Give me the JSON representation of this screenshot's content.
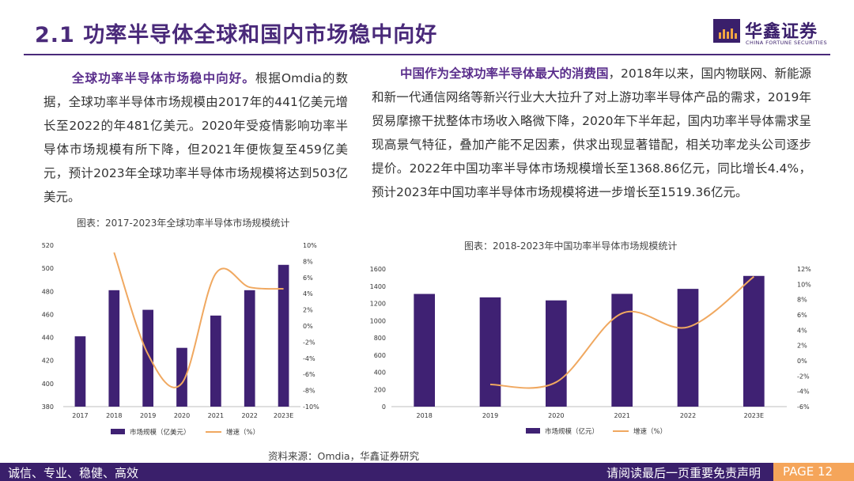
{
  "header": {
    "title": "2.1 功率半导体全球和国内市场稳中向好",
    "logo_cn": "华鑫证券",
    "logo_en": "CHINA FORTUNE SECURITIES"
  },
  "left_text": {
    "highlight": "全球功率半导体市场稳中向好。",
    "body": "根据Omdia的数据，全球功率半导体市场规模由2017年的441亿美元增长至2022的年481亿美元。2020年受疫情影响功率半导体市场规模有所下降，但2021年便恢复至459亿美元，预计2023年全球功率半导体市场规模将达到503亿美元。"
  },
  "right_text": {
    "highlight": "中国作为全球功率半导体最大的消费国",
    "body": "，2018年以来，国内物联网、新能源和新一代通信网络等新兴行业大大拉升了对上游功率半导体产品的需求，2019年贸易摩擦干扰整体市场收入略微下降，2020年下半年起，国内功率半导体需求呈现高景气特征，叠加产能不足因素，供求出现显著错配，相关功率龙头公司逐步提价。2022年中国功率半导体市场规模增长至1368.86亿元，同比增长4.4%，预计2023年中国功率半导体市场规模将进一步增长至1519.36亿元。"
  },
  "chart_data": [
    {
      "type": "bar+line",
      "title": "图表：2017-2023年全球功率半导体市场规模统计",
      "categories": [
        "2017",
        "2018",
        "2019",
        "2020",
        "2021",
        "2022",
        "2023E"
      ],
      "series": [
        {
          "name": "市场规模（亿美元）",
          "type": "bar",
          "axis": "left",
          "values": [
            441,
            481,
            464,
            431,
            459,
            481,
            503
          ]
        },
        {
          "name": "增速（%）",
          "type": "line",
          "axis": "right",
          "values": [
            null,
            9.1,
            -3.5,
            -7.1,
            6.5,
            4.8,
            4.6
          ]
        }
      ],
      "left_axis": {
        "min": 380,
        "max": 520,
        "step": 20,
        "ticks": [
          "380",
          "400",
          "420",
          "440",
          "460",
          "480",
          "500",
          "520"
        ]
      },
      "right_axis": {
        "min": -10,
        "max": 10,
        "step": 2,
        "ticks": [
          "-10%",
          "-8%",
          "-6%",
          "-4%",
          "-2%",
          "0%",
          "2%",
          "4%",
          "6%",
          "8%",
          "10%"
        ]
      },
      "colors": {
        "bar": "#3f2173",
        "line": "#f0a860"
      }
    },
    {
      "type": "bar+line",
      "title": "图表：2018-2023年中国功率半导体市场规模统计",
      "categories": [
        "2018",
        "2019",
        "2020",
        "2021",
        "2022",
        "2023E"
      ],
      "series": [
        {
          "name": "市场规模（亿元）",
          "type": "bar",
          "axis": "left",
          "values": [
            1310,
            1270,
            1235,
            1311,
            1368.86,
            1519.36
          ]
        },
        {
          "name": "增速（%）",
          "type": "line",
          "axis": "right",
          "values": [
            null,
            -3.1,
            -2.8,
            6.2,
            4.4,
            11.0
          ]
        }
      ],
      "left_axis": {
        "min": 0,
        "max": 1600,
        "step": 200,
        "ticks": [
          "0",
          "200",
          "400",
          "600",
          "800",
          "1000",
          "1200",
          "1400",
          "1600"
        ]
      },
      "right_axis": {
        "min": -6,
        "max": 12,
        "step": 2,
        "ticks": [
          "-6%",
          "-4%",
          "-2%",
          "0%",
          "2%",
          "4%",
          "6%",
          "8%",
          "10%",
          "12%"
        ]
      },
      "colors": {
        "bar": "#3f2173",
        "line": "#f0a860"
      }
    }
  ],
  "source": "资料来源：Omdia，华鑫证券研究",
  "footer": {
    "slogan": "诚信、专业、稳健、高效",
    "disclaimer": "请阅读最后一页重要免责声明",
    "page": "PAGE 12"
  }
}
